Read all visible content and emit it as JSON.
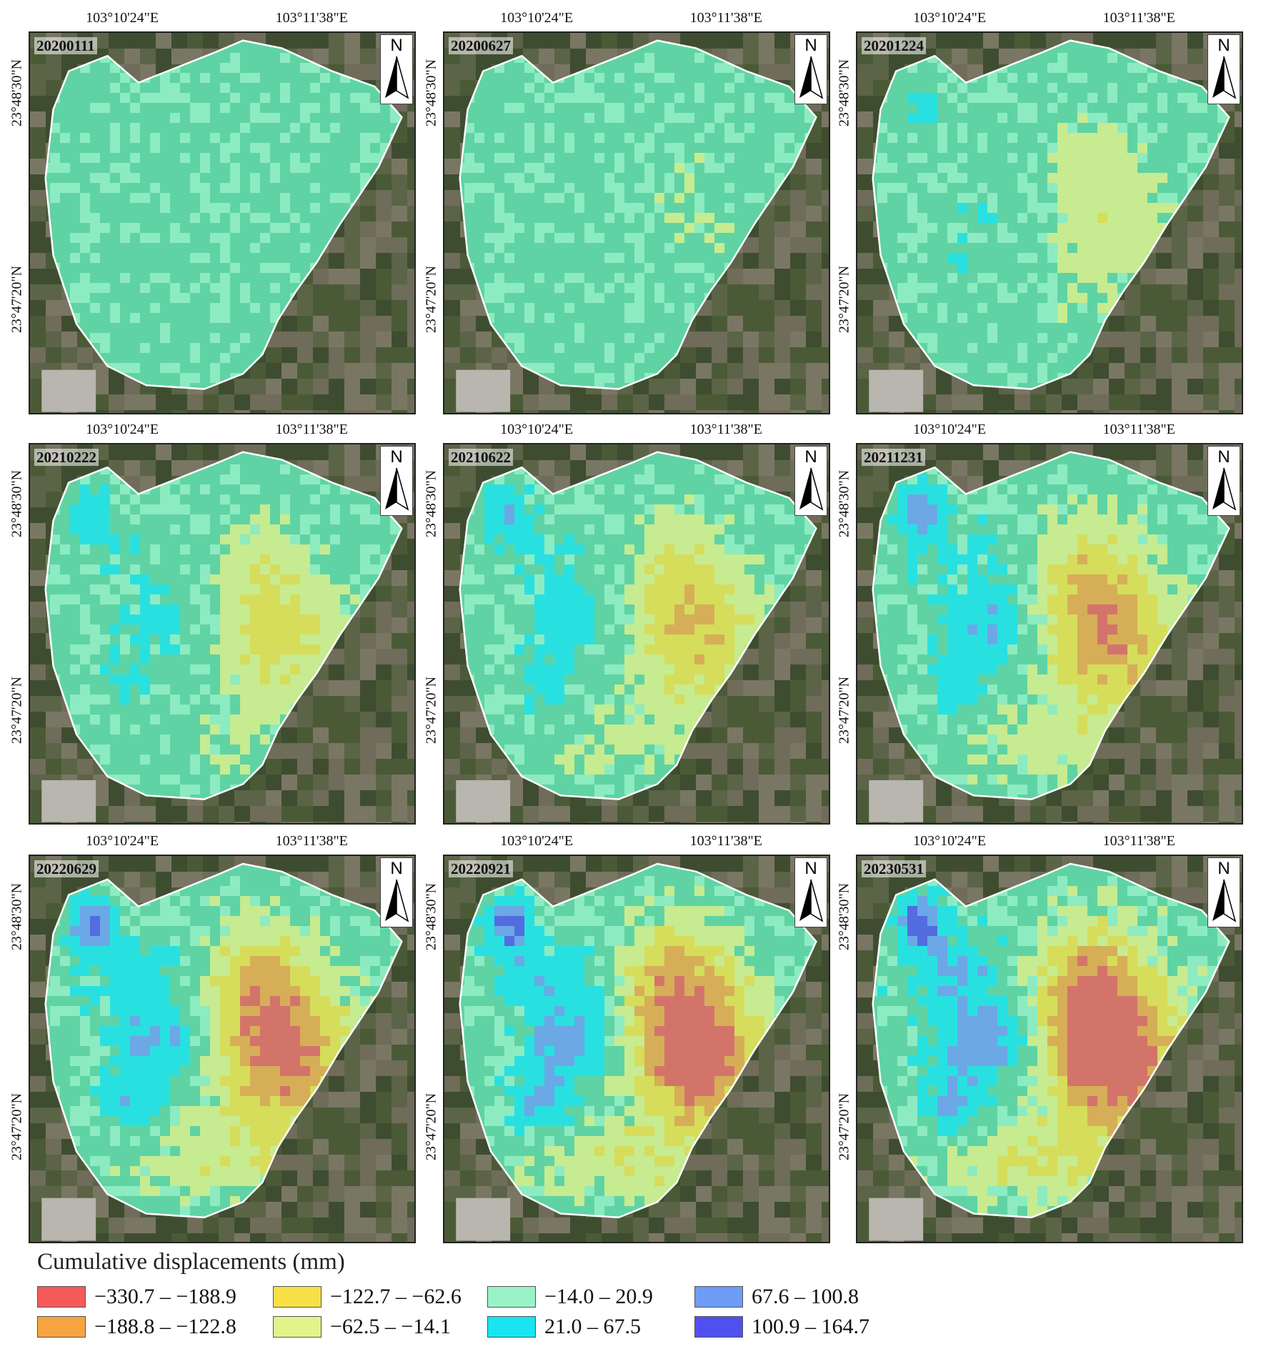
{
  "coords": {
    "lon_left": "103°10'24\"E",
    "lon_right": "103°11'38\"E",
    "lat_top": "23°48'30\"N",
    "lat_bottom": "23°47'20\"N"
  },
  "north_label": "N",
  "panels": [
    {
      "date": "20200111",
      "level": 0.0
    },
    {
      "date": "20200627",
      "level": 0.13
    },
    {
      "date": "20201224",
      "level": 0.26
    },
    {
      "date": "20210222",
      "level": 0.38
    },
    {
      "date": "20210622",
      "level": 0.5
    },
    {
      "date": "20211231",
      "level": 0.64
    },
    {
      "date": "20220629",
      "level": 0.78
    },
    {
      "date": "20220921",
      "level": 0.88
    },
    {
      "date": "20230531",
      "level": 1.0
    }
  ],
  "legend": {
    "title": "Cumulative displacements (mm)",
    "classes": [
      {
        "label": "−330.7 – −188.9",
        "color": "#f45a5a"
      },
      {
        "label": "−188.8 – −122.8",
        "color": "#f7a443"
      },
      {
        "label": "−122.7 – −62.6",
        "color": "#f7e046"
      },
      {
        "label": "−62.5 – −14.1",
        "color": "#e4f28a"
      },
      {
        "label": "−14.0 – 20.9",
        "color": "#9af2c9"
      },
      {
        "label": "21.0 – 67.5",
        "color": "#19e4f2"
      },
      {
        "label": "67.6 – 100.8",
        "color": "#6e9cf7"
      },
      {
        "label": "100.9 – 164.7",
        "color": "#5050f0"
      }
    ]
  }
}
